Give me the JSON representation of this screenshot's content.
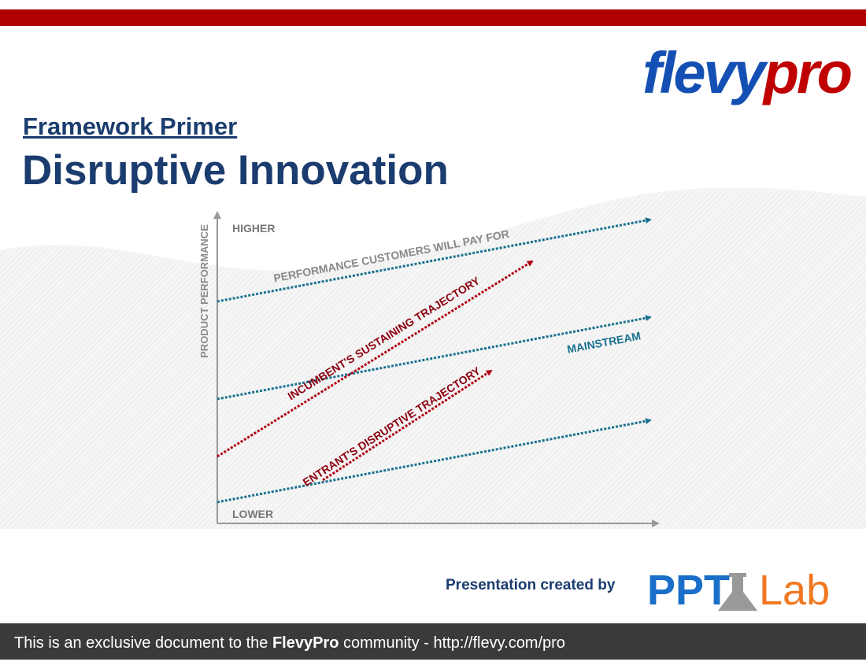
{
  "logo": {
    "part1": "flevy",
    "part2": "pro"
  },
  "header": {
    "subtitle": "Framework Primer",
    "title": "Disruptive Innovation"
  },
  "diagram": {
    "y_axis_label": "PRODUCT PERFORMANCE",
    "higher": "HIGHER",
    "lower": "LOWER",
    "customer_line": "PERFORMANCE CUSTOMERS WILL PAY FOR",
    "sustaining": "INCUMBENT'S SUSTAINING TRAJECTORY",
    "mainstream": "MAINSTREAM",
    "disruptive": "ENTRANT'S DISRUPTIVE TRAJECTORY"
  },
  "credit": {
    "text": "Presentation created by",
    "brand1": "PPT",
    "brand2": "Lab"
  },
  "footer": {
    "part1": "This is an exclusive document to the",
    "bold": "FlevyPro",
    "part2": "community - http://flevy.com/pro"
  }
}
